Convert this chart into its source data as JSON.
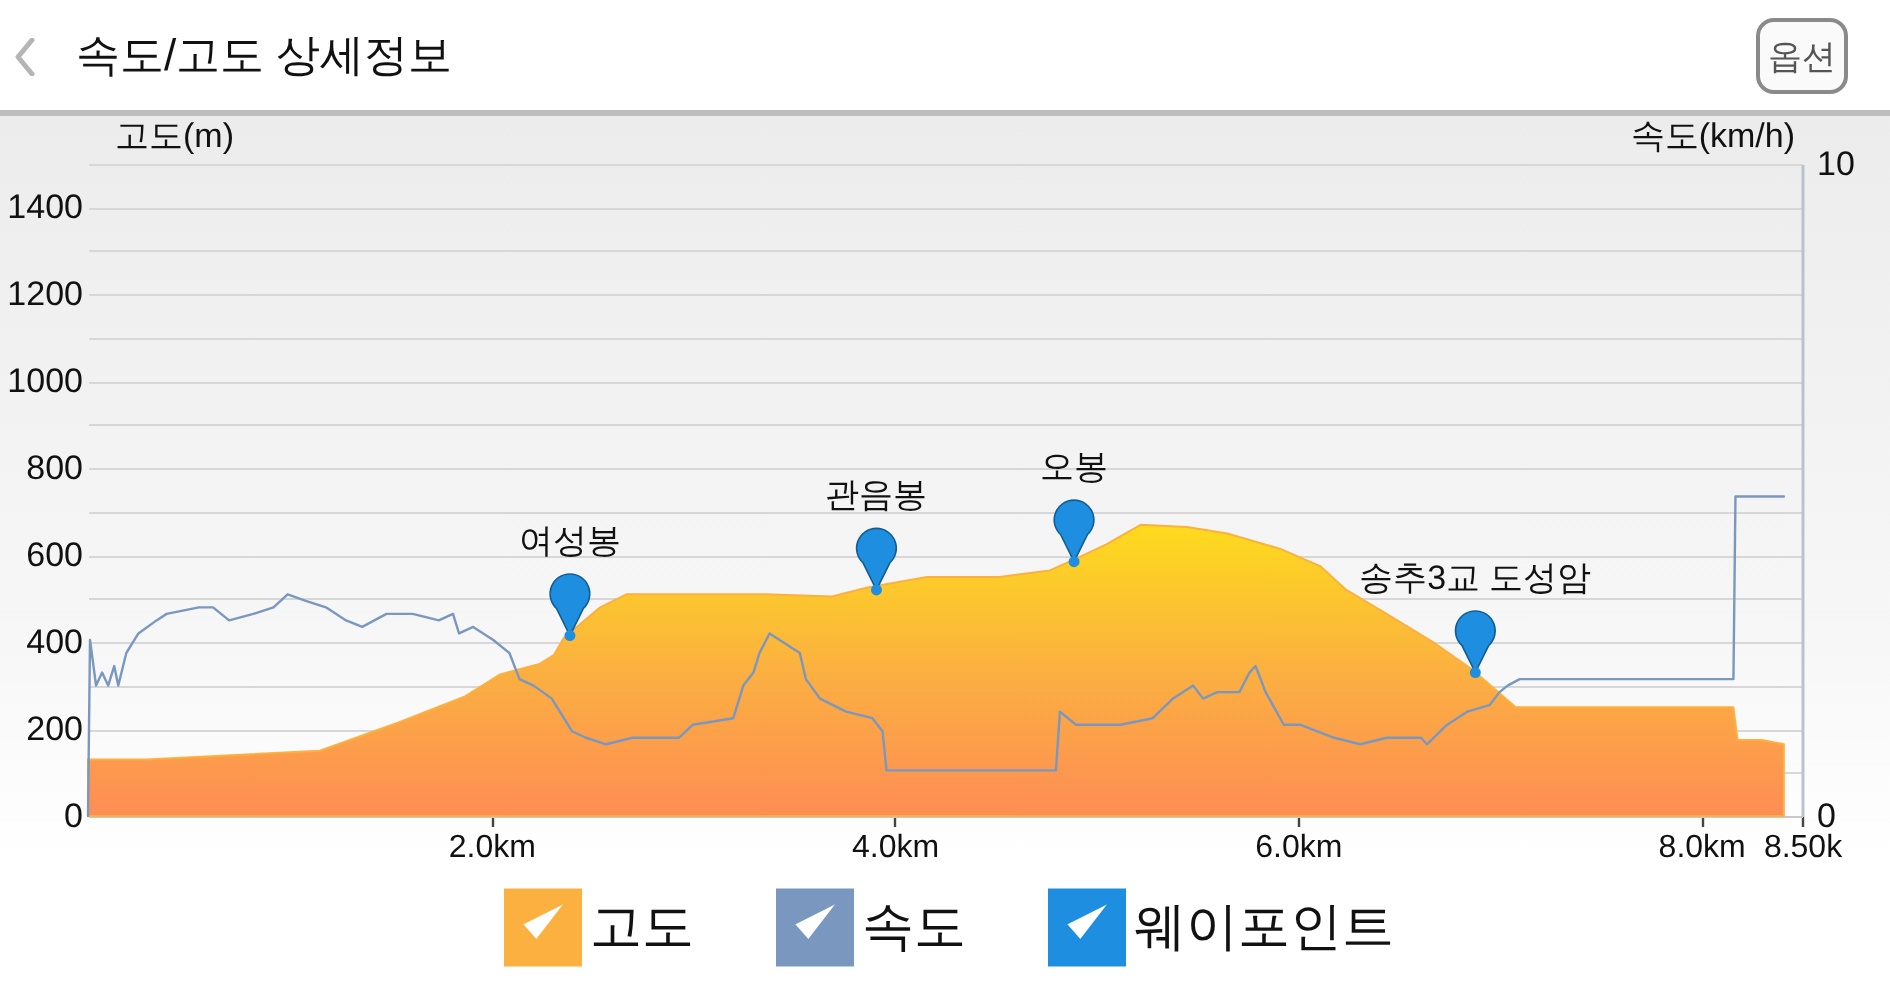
{
  "chart_data": {
    "type": "area",
    "title": "속도/고도 상세정보",
    "ylabel": "고도(m)",
    "y2label": "속도(km/h)",
    "xlim": [
      0,
      8.5
    ],
    "xticks": [
      {
        "value": 2,
        "label": "2.0km"
      },
      {
        "value": 4,
        "label": "4.0km"
      },
      {
        "value": 6,
        "label": "6.0km"
      },
      {
        "value": 8,
        "label": "8.0km"
      },
      {
        "value": 8.5,
        "label": "8.50k"
      }
    ],
    "ylim": [
      0,
      1500
    ],
    "yticks": [
      0,
      {
        "value": 100,
        "label": null
      },
      200,
      {
        "value": 300,
        "label": null
      },
      400,
      {
        "value": 500,
        "label": null
      },
      600,
      {
        "value": 700,
        "label": null
      },
      800,
      {
        "value": 900,
        "label": null
      },
      1000,
      {
        "value": 1100,
        "label": null
      },
      1200,
      {
        "value": 1300,
        "label": null
      },
      1400,
      {
        "value": 1500,
        "label": null
      }
    ],
    "y2lim": [
      0,
      10
    ],
    "y2ticks": [
      0,
      10
    ],
    "grid": "y",
    "legend": "bottom",
    "series": [
      {
        "name": "고도",
        "color": "#fbb040",
        "x": [
          0,
          0.29,
          1.15,
          1.54,
          1.87,
          2.04,
          2.24,
          2.31,
          2.36,
          2.54,
          2.67,
          3.36,
          3.69,
          3.86,
          4.16,
          4.52,
          4.77,
          4.89,
          5.05,
          5.22,
          5.45,
          5.65,
          5.91,
          6.11,
          6.24,
          6.44,
          6.67,
          6.87,
          7.08,
          8.16,
          8.18,
          8.3,
          8.41
        ],
        "values": [
          130,
          130,
          150,
          215,
          275,
          325,
          350,
          370,
          410,
          480,
          510,
          510,
          505,
          525,
          550,
          550,
          565,
          590,
          625,
          670,
          665,
          650,
          615,
          575,
          520,
          465,
          400,
          335,
          250,
          250,
          175,
          175,
          165
        ]
      },
      {
        "name": "속도",
        "type": "line",
        "axis": "y2",
        "color": "#7a98bf",
        "x": [
          0,
          0.01,
          0.04,
          0.07,
          0.1,
          0.13,
          0.15,
          0.19,
          0.25,
          0.34,
          0.39,
          0.55,
          0.62,
          0.7,
          0.82,
          0.92,
          0.99,
          1.08,
          1.18,
          1.28,
          1.36,
          1.48,
          1.61,
          1.74,
          1.81,
          1.84,
          1.91,
          2.01,
          2.09,
          2.14,
          2.21,
          2.3,
          2.4,
          2.47,
          2.57,
          2.7,
          2.93,
          3.0,
          3.2,
          3.25,
          3.3,
          3.33,
          3.38,
          3.43,
          3.53,
          3.56,
          3.63,
          3.76,
          3.89,
          3.94,
          3.96,
          4.3,
          4.8,
          4.82,
          4.9,
          5.12,
          5.28,
          5.38,
          5.48,
          5.53,
          5.6,
          5.71,
          5.76,
          5.79,
          5.84,
          5.93,
          6.01,
          6.18,
          6.31,
          6.44,
          6.61,
          6.64,
          6.74,
          6.84,
          6.95,
          7.0,
          7.04,
          7.1,
          8.16,
          8.17,
          8.41
        ],
        "values": [
          0,
          2.7,
          2.0,
          2.2,
          2.0,
          2.3,
          2.0,
          2.5,
          2.8,
          3.0,
          3.1,
          3.2,
          3.2,
          3.0,
          3.1,
          3.2,
          3.4,
          3.3,
          3.2,
          3.0,
          2.9,
          3.1,
          3.1,
          3.0,
          3.1,
          2.8,
          2.9,
          2.7,
          2.5,
          2.1,
          2.0,
          1.8,
          1.3,
          1.2,
          1.1,
          1.2,
          1.2,
          1.4,
          1.5,
          2.0,
          2.2,
          2.5,
          2.8,
          2.7,
          2.5,
          2.1,
          1.8,
          1.6,
          1.5,
          1.3,
          0.7,
          0.7,
          0.7,
          1.6,
          1.4,
          1.4,
          1.5,
          1.8,
          2.0,
          1.8,
          1.9,
          1.9,
          2.2,
          2.3,
          1.9,
          1.4,
          1.4,
          1.2,
          1.1,
          1.2,
          1.2,
          1.1,
          1.4,
          1.6,
          1.7,
          1.9,
          2.0,
          2.1,
          2.1,
          4.9,
          4.9
        ]
      },
      {
        "name": "웨이포인트",
        "type": "scatter",
        "color": "#1e8fe0",
        "x": [
          2.39,
          3.91,
          4.89,
          6.88
        ],
        "values": [
          415,
          520,
          585,
          330
        ]
      }
    ],
    "annotations": [
      {
        "text": "여성봉",
        "x": 2.39,
        "y": 415
      },
      {
        "text": "관음봉",
        "x": 3.91,
        "y": 520
      },
      {
        "text": "오봉",
        "x": 4.89,
        "y": 585
      },
      {
        "text": "송추3교 도성암",
        "x": 6.88,
        "y": 330
      },
      "옵션"
    ]
  }
}
